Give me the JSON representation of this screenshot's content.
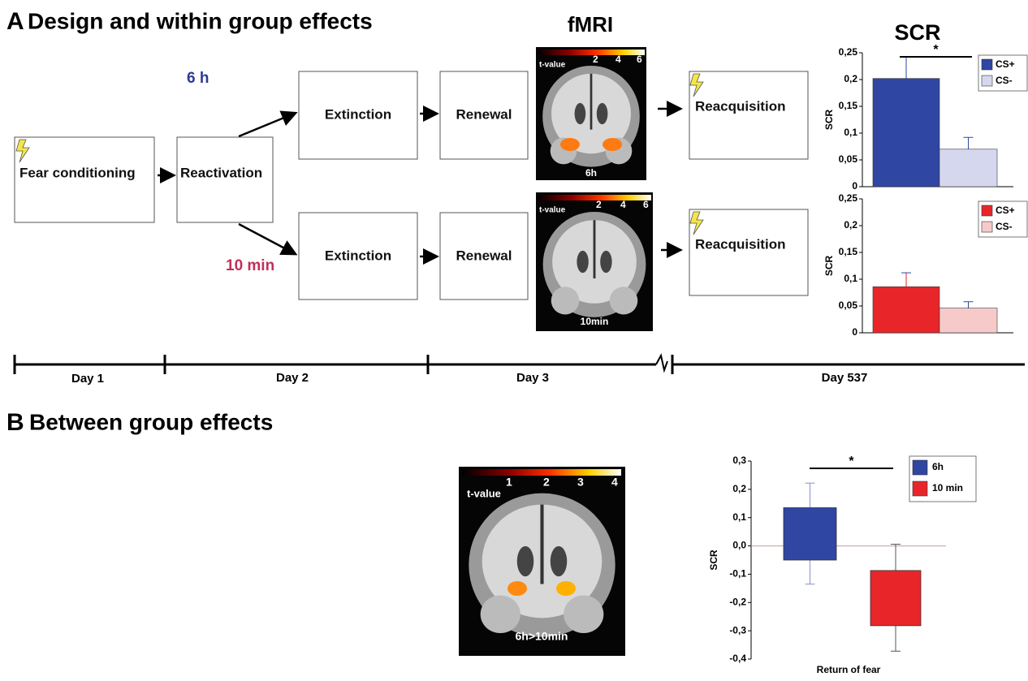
{
  "panel_a": {
    "letter": "A",
    "title": "Design and within group effects",
    "fmri_title": "fMRI",
    "boxes": {
      "fear_conditioning": "Fear conditioning",
      "reactivation": "Reactivation",
      "extinction_6h": "Extinction",
      "renewal_6h": "Renewal",
      "reacquisition_6h": "Reacquisition",
      "extinction_10min": "Extinction",
      "renewal_10min": "Renewal",
      "reacquisition_10min": "Reacquisition"
    },
    "group_6h": "6 h",
    "group_10min": "10 min",
    "fmri_6h": {
      "colorbar_label": "t-value",
      "colorbar_ticks": [
        "2",
        "4",
        "6"
      ],
      "caption": "6h"
    },
    "fmri_10min": {
      "colorbar_label": "t-value",
      "colorbar_ticks": [
        "2",
        "4",
        "6"
      ],
      "caption": "10min"
    },
    "timeline": [
      "Day 1",
      "Day 2",
      "Day 3",
      "Day 537"
    ]
  },
  "panel_b": {
    "letter": "B",
    "title": "Between group effects",
    "fmri": {
      "colorbar_label": "t-value",
      "colorbar_ticks": [
        "1",
        "2",
        "3",
        "4"
      ],
      "caption": "6h>10min"
    }
  },
  "chart_data": [
    {
      "type": "bar",
      "title": "SCR",
      "y_label": "SCR",
      "annotation": "*",
      "ylim": [
        0,
        0.25
      ],
      "yticks": [
        0,
        {
          "value": 0.05,
          "label": "0,05"
        },
        {
          "value": 0.1,
          "label": "0,1"
        },
        {
          "value": 0.15,
          "label": "0,15"
        },
        {
          "value": 0.2,
          "label": "0,2"
        },
        {
          "value": 0.25,
          "label": "0,25"
        }
      ],
      "series": [
        {
          "name": "CS+",
          "color": "#2f46a3",
          "values": [
            0.202
          ],
          "errors": [
            0.04
          ]
        },
        {
          "name": "CS-",
          "color": "#d5d7ef",
          "values": [
            0.07
          ],
          "errors": [
            0.022
          ]
        }
      ]
    },
    {
      "type": "bar",
      "y_label": "SCR",
      "ylim": [
        0,
        0.25
      ],
      "yticks": [
        0,
        {
          "value": 0.05,
          "label": "0,05"
        },
        {
          "value": 0.1,
          "label": "0,1"
        },
        {
          "value": 0.15,
          "label": "0,15"
        },
        {
          "value": 0.2,
          "label": "0,2"
        },
        {
          "value": 0.25,
          "label": "0,25"
        }
      ],
      "series": [
        {
          "name": "CS+",
          "color": "#e8262a",
          "values": [
            0.086
          ],
          "errors": [
            0.026
          ]
        },
        {
          "name": "CS-",
          "color": "#f7caca",
          "values": [
            0.046
          ],
          "errors": [
            0.012
          ]
        }
      ]
    },
    {
      "type": "floating-bar",
      "y_label": "SCR",
      "x_label": "Return of fear",
      "annotation": "*",
      "ylim": [
        -0.4,
        0.3
      ],
      "yticks": [
        {
          "value": -0.4,
          "label": "-0,4"
        },
        {
          "value": -0.3,
          "label": "-0,3"
        },
        {
          "value": -0.2,
          "label": "-0,2"
        },
        {
          "value": -0.1,
          "label": "-0,1"
        },
        {
          "value": 0,
          "label": "0,0"
        },
        {
          "value": 0.1,
          "label": "0,1"
        },
        {
          "value": 0.2,
          "label": "0,2"
        },
        {
          "value": 0.3,
          "label": "0,3"
        }
      ],
      "series": [
        {
          "name": "6h",
          "color": "#2f46a3",
          "low": [
            -0.05
          ],
          "high": [
            0.135
          ],
          "whisker_low": [
            -0.135
          ],
          "whisker_high": [
            0.222
          ]
        },
        {
          "name": "10 min",
          "color": "#e8262a",
          "low": [
            -0.282
          ],
          "high": [
            -0.087
          ],
          "whisker_low": [
            -0.372
          ],
          "whisker_high": [
            0.006
          ]
        }
      ]
    }
  ]
}
